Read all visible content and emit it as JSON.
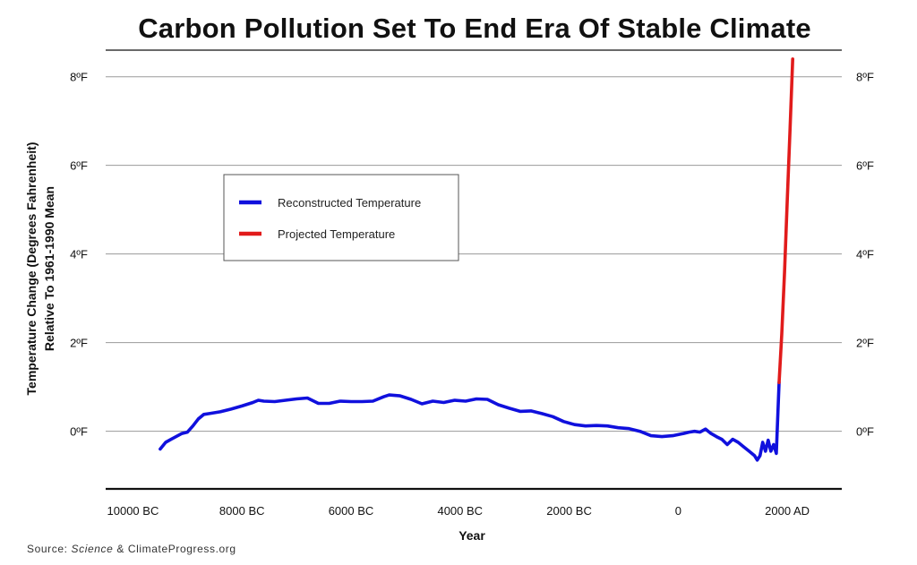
{
  "chart_data": {
    "type": "line",
    "title": "Carbon Pollution Set To End Era Of Stable Climate",
    "xlabel": "Year",
    "ylabel_line1": "Temperature Change (Degrees Fahrenheit)",
    "ylabel_line2": "Relative To 1961-1990 Mean",
    "x_ticks": [
      "10000 BC",
      "8000 BC",
      "6000 BC",
      "4000 BC",
      "2000 BC",
      "0",
      "2000 AD"
    ],
    "x_tick_values": [
      -10000,
      -8000,
      -6000,
      -4000,
      -2000,
      0,
      2000
    ],
    "y_ticks_left": [
      "8ºF",
      "6ºF",
      "4ºF",
      "2ºF",
      "0ºF"
    ],
    "y_ticks_right": [
      "8ºF",
      "6ºF",
      "4ºF",
      "2ºF",
      "0ºF"
    ],
    "y_tick_values": [
      8,
      6,
      4,
      2,
      0
    ],
    "xlim": [
      -10500,
      3000
    ],
    "ylim": [
      -1.3,
      8.6
    ],
    "grid": true,
    "legend_placement": "upper-left",
    "series": [
      {
        "name": "Reconstructed Temperature",
        "color": "#1010dd",
        "x": [
          -9500,
          -9400,
          -9300,
          -9100,
          -9000,
          -8900,
          -8800,
          -8700,
          -8600,
          -8400,
          -8200,
          -8000,
          -7800,
          -7700,
          -7600,
          -7400,
          -7200,
          -7000,
          -6800,
          -6600,
          -6400,
          -6200,
          -6000,
          -5800,
          -5600,
          -5400,
          -5300,
          -5100,
          -4900,
          -4700,
          -4500,
          -4300,
          -4100,
          -3900,
          -3700,
          -3500,
          -3300,
          -3100,
          -2900,
          -2700,
          -2500,
          -2300,
          -2100,
          -1900,
          -1700,
          -1500,
          -1300,
          -1100,
          -900,
          -700,
          -500,
          -300,
          -100,
          100,
          200,
          300,
          400,
          500,
          600,
          700,
          800,
          900,
          1000,
          1100,
          1200,
          1300,
          1400,
          1450,
          1500,
          1550,
          1600,
          1650,
          1700,
          1750,
          1800,
          1850
        ],
        "y": [
          -0.4,
          -0.25,
          -0.18,
          -0.05,
          -0.02,
          0.12,
          0.28,
          0.38,
          0.4,
          0.44,
          0.5,
          0.57,
          0.65,
          0.7,
          0.68,
          0.67,
          0.7,
          0.73,
          0.75,
          0.63,
          0.63,
          0.68,
          0.67,
          0.67,
          0.68,
          0.78,
          0.82,
          0.8,
          0.72,
          0.62,
          0.68,
          0.65,
          0.7,
          0.68,
          0.73,
          0.72,
          0.6,
          0.52,
          0.45,
          0.46,
          0.4,
          0.33,
          0.22,
          0.15,
          0.12,
          0.13,
          0.12,
          0.08,
          0.06,
          0.0,
          -0.1,
          -0.12,
          -0.1,
          -0.05,
          -0.02,
          0.0,
          -0.02,
          0.05,
          -0.05,
          -0.12,
          -0.18,
          -0.3,
          -0.18,
          -0.25,
          -0.35,
          -0.45,
          -0.55,
          -0.65,
          -0.55,
          -0.25,
          -0.45,
          -0.2,
          -0.45,
          -0.3,
          -0.5,
          1.1
        ]
      },
      {
        "name": "Projected Temperature",
        "color": "#e11b1b",
        "x": [
          1850,
          1900,
          1950,
          2000,
          2050,
          2100
        ],
        "y": [
          1.1,
          2.2,
          3.6,
          5.2,
          6.8,
          8.4
        ]
      }
    ]
  },
  "source": {
    "prefix": "Source: ",
    "italic": "Science",
    "suffix": " & ClimateProgress.org"
  }
}
